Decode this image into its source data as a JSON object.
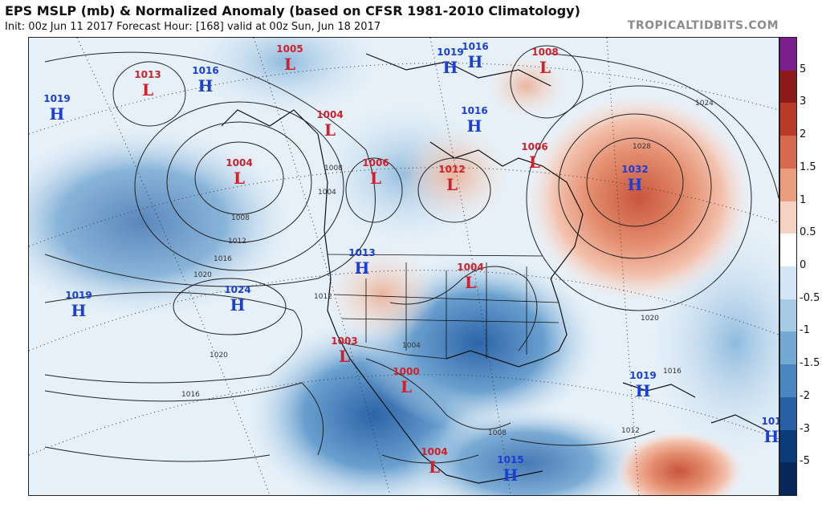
{
  "header": {
    "title": "EPS MSLP (mb) & Normalized Anomaly (based on CFSR 1981-2010 Climatology)",
    "subtitle": "Init: 00z Jun 11 2017   Forecast Hour: [168]   valid at 00z Sun, Jun 18 2017",
    "brand": "TROPICALTIDBITS.COM"
  },
  "colorbar": {
    "labels": [
      "5",
      "3",
      "2",
      "1.5",
      "1",
      "0.5",
      "0",
      "-0.5",
      "-1",
      "-1.5",
      "-2",
      "-3",
      "-5"
    ],
    "colors": [
      "#7a1f8c",
      "#8c1a1a",
      "#b83a2a",
      "#d66a4e",
      "#e99c7e",
      "#f6d2c2",
      "#ffffff",
      "#d4e6f3",
      "#a7cbe5",
      "#74a9d3",
      "#4a86c0",
      "#2761a4",
      "#0d3b7a",
      "#072858"
    ]
  },
  "map": {
    "high_color": "#1a3fd6",
    "low_color": "#d0202a",
    "pressure_systems": [
      {
        "type": "H",
        "value": "1019"
      },
      {
        "type": "L",
        "value": "1013"
      },
      {
        "type": "H",
        "value": "1016"
      },
      {
        "type": "L",
        "value": "1004"
      },
      {
        "type": "L",
        "value": "1005"
      },
      {
        "type": "L",
        "value": "1004"
      },
      {
        "type": "L",
        "value": "1006"
      },
      {
        "type": "H",
        "value": "1019"
      },
      {
        "type": "L",
        "value": "1012"
      },
      {
        "type": "H",
        "value": "1016"
      },
      {
        "type": "H",
        "value": "1016"
      },
      {
        "type": "L",
        "value": "1008"
      },
      {
        "type": "L",
        "value": "1006"
      },
      {
        "type": "H",
        "value": "1032"
      },
      {
        "type": "H",
        "value": "1013"
      },
      {
        "type": "L",
        "value": "1004"
      },
      {
        "type": "H",
        "value": "1019"
      },
      {
        "type": "H",
        "value": "1024"
      },
      {
        "type": "L",
        "value": "1003"
      },
      {
        "type": "L",
        "value": "1000"
      },
      {
        "type": "H",
        "value": "1019"
      },
      {
        "type": "L",
        "value": "1004"
      },
      {
        "type": "H",
        "value": "1015"
      },
      {
        "type": "H",
        "value": "101"
      }
    ],
    "isobar_labels": [
      "1008",
      "1012",
      "1016",
      "1020",
      "1024",
      "1028",
      "1020",
      "1016",
      "1012",
      "1008",
      "1004",
      "1012",
      "1016",
      "1020",
      "1004",
      "1008"
    ]
  }
}
